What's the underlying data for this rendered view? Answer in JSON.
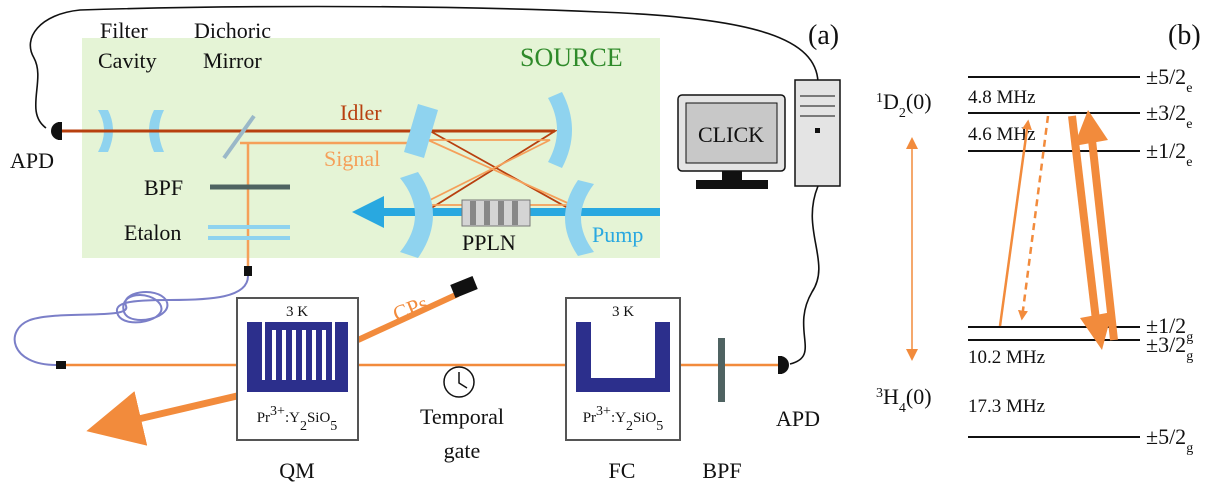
{
  "panel_a": {
    "label": "(a)",
    "source": "SOURCE",
    "filter_cavity": [
      "Filter",
      "Cavity"
    ],
    "dichroic_mirror": [
      "Dichoric",
      "Mirror"
    ],
    "idler": "Idler",
    "signal": "Signal",
    "apd_source": "APD",
    "bpf_source": "BPF",
    "etalon": "Etalon",
    "ppln": "PPLN",
    "pump": "Pump",
    "computer_screen": "CLICK",
    "qm": {
      "temperature": "3 K",
      "crystal": {
        "ion": "Pr",
        "charge": "3+",
        "host": ":Y",
        "host_sub": "2",
        "host_rest": "SiO",
        "host_rest_sub": "5"
      },
      "label": "QM"
    },
    "cps": "CPs",
    "temporal_gate": [
      "Temporal",
      "gate"
    ],
    "fc": {
      "temperature": "3 K",
      "crystal": {
        "ion": "Pr",
        "charge": "3+",
        "host": ":Y",
        "host_sub": "2",
        "host_rest": "SiO",
        "host_rest_sub": "5"
      },
      "label": "FC"
    },
    "bpf_detection": "BPF",
    "apd_detection": "APD"
  },
  "panel_b": {
    "label": "(b)",
    "excited": {
      "term": {
        "sup": "1",
        "symbol": "D",
        "sub": "2",
        "state": "(0)"
      },
      "levels": [
        {
          "label": "±5/2",
          "sub": "e"
        },
        {
          "label": "±3/2",
          "sub": "e"
        },
        {
          "label": "±1/2",
          "sub": "e"
        }
      ],
      "splittings": [
        "4.8 MHz",
        "4.6 MHz"
      ]
    },
    "ground": {
      "term": {
        "sup": "3",
        "symbol": "H",
        "sub": "4",
        "state": "(0)"
      },
      "levels": [
        {
          "label": "±1/2",
          "sub": "g"
        },
        {
          "label": "±3/2",
          "sub": "g"
        },
        {
          "label": "±5/2",
          "sub": "g"
        }
      ],
      "splittings": [
        "10.2 MHz",
        "17.3 MHz"
      ]
    }
  }
}
